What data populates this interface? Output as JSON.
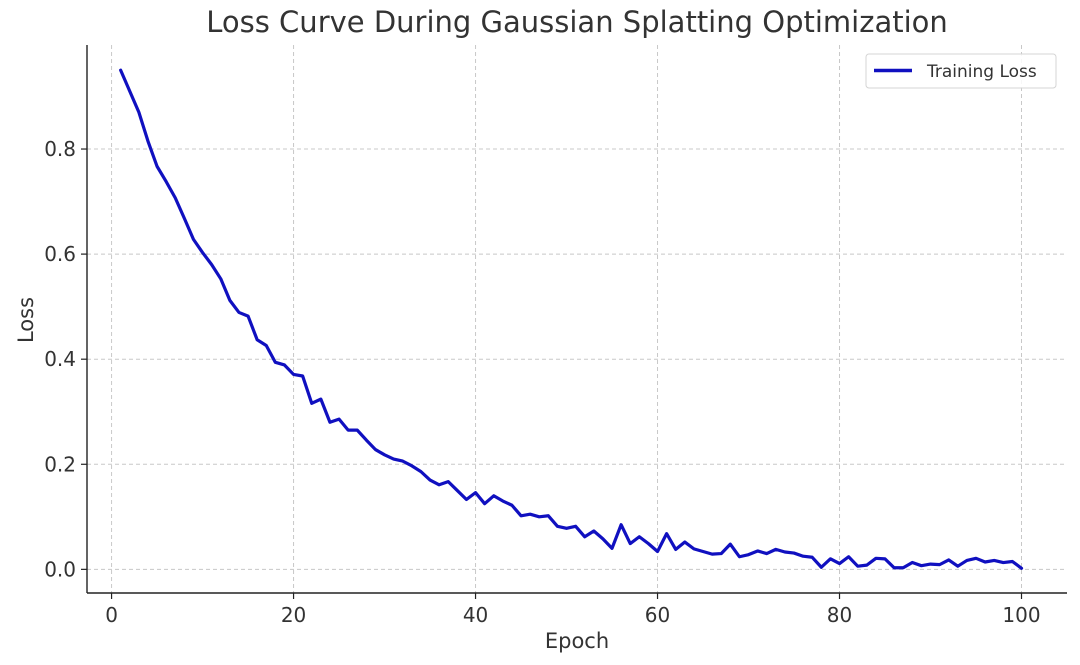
{
  "chart_data": {
    "type": "line",
    "title": "Loss Curve During Gaussian Splatting Optimization",
    "xlabel": "Epoch",
    "ylabel": "Loss",
    "xlim": [
      -2.7,
      105
    ],
    "ylim": [
      -0.045,
      0.998
    ],
    "xticks": [
      0,
      20,
      40,
      60,
      80,
      100
    ],
    "yticks": [
      0.0,
      0.2,
      0.4,
      0.6,
      0.8
    ],
    "xtick_labels": [
      "0",
      "20",
      "40",
      "60",
      "80",
      "100"
    ],
    "ytick_labels": [
      "0.0",
      "0.2",
      "0.4",
      "0.6",
      "0.8"
    ],
    "grid": true,
    "legend": {
      "position": "top-right"
    },
    "series": [
      {
        "name": "Training Loss",
        "color": "#1010c0",
        "x": [
          1,
          2,
          3,
          4,
          5,
          6,
          7,
          8,
          9,
          10,
          11,
          12,
          13,
          14,
          15,
          16,
          17,
          18,
          19,
          20,
          21,
          22,
          23,
          24,
          25,
          26,
          27,
          28,
          29,
          30,
          31,
          32,
          33,
          34,
          35,
          36,
          37,
          38,
          39,
          40,
          41,
          42,
          43,
          44,
          45,
          46,
          47,
          48,
          49,
          50,
          51,
          52,
          53,
          54,
          55,
          56,
          57,
          58,
          59,
          60,
          61,
          62,
          63,
          64,
          65,
          66,
          67,
          68,
          69,
          70,
          71,
          72,
          73,
          74,
          75,
          76,
          77,
          78,
          79,
          80,
          81,
          82,
          83,
          84,
          85,
          86,
          87,
          88,
          89,
          90,
          91,
          92,
          93,
          94,
          95,
          96,
          97,
          98,
          99,
          100
        ],
        "y": [
          0.95,
          0.91,
          0.87,
          0.815,
          0.767,
          0.738,
          0.707,
          0.668,
          0.628,
          0.603,
          0.58,
          0.553,
          0.512,
          0.489,
          0.482,
          0.437,
          0.426,
          0.394,
          0.389,
          0.371,
          0.368,
          0.316,
          0.324,
          0.28,
          0.286,
          0.265,
          0.265,
          0.246,
          0.228,
          0.218,
          0.21,
          0.206,
          0.197,
          0.186,
          0.17,
          0.161,
          0.167,
          0.15,
          0.133,
          0.146,
          0.125,
          0.14,
          0.13,
          0.122,
          0.102,
          0.105,
          0.1,
          0.102,
          0.082,
          0.078,
          0.082,
          0.062,
          0.073,
          0.058,
          0.04,
          0.085,
          0.049,
          0.062,
          0.049,
          0.034,
          0.068,
          0.038,
          0.052,
          0.039,
          0.034,
          0.029,
          0.03,
          0.048,
          0.024,
          0.028,
          0.035,
          0.03,
          0.038,
          0.033,
          0.031,
          0.025,
          0.023,
          0.004,
          0.02,
          0.011,
          0.024,
          0.006,
          0.008,
          0.021,
          0.02,
          0.003,
          0.003,
          0.013,
          0.007,
          0.01,
          0.009,
          0.018,
          0.006,
          0.017,
          0.021,
          0.014,
          0.017,
          0.013,
          0.015,
          0.002
        ]
      }
    ]
  }
}
